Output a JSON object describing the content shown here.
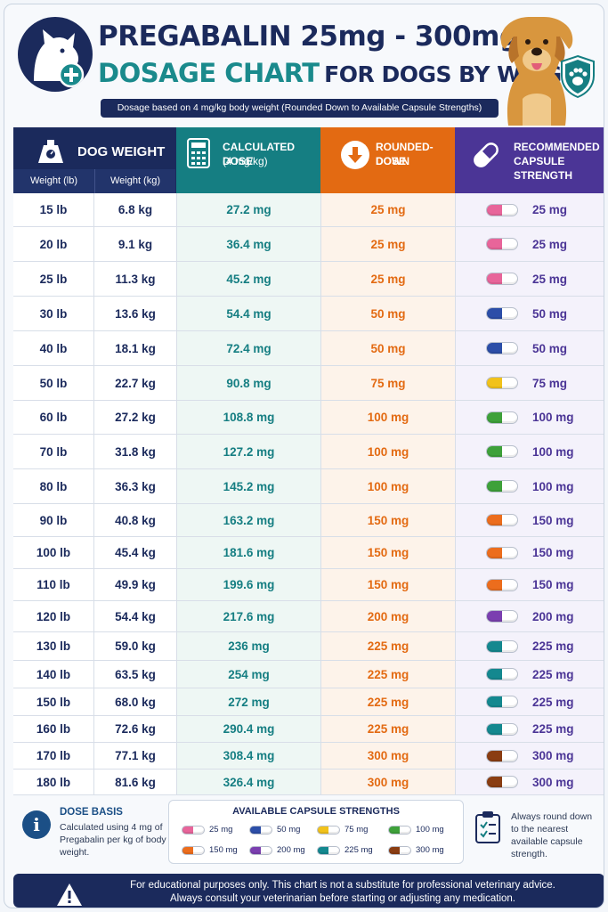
{
  "header": {
    "title_line1": "PREGABALIN 25mg - 300mg",
    "title_line2a": "DOSAGE CHART",
    "title_line2b": "FOR DOGS BY WEIGHT",
    "subtitle": "Dosage based on 4 mg/kg body weight (Rounded Down to Available Capsule Strengths)",
    "logo_icon": "dog-head-plus-icon",
    "photo": "golden-retriever",
    "badge_icon": "paw-shield-icon"
  },
  "columns": {
    "weight": "DOG WEIGHT",
    "weight_lb": "Weight (lb)",
    "weight_kg": "Weight (kg)",
    "calc": "CALCULATED DOSE",
    "calc_sub": "(4 mg/kg)",
    "round": "ROUNDED-DOWN",
    "round_sub": "DOSE",
    "rec": "RECOMMENDED",
    "rec_sub": "CAPSULE STRENGTH"
  },
  "colors": {
    "25": "#e8659a",
    "50": "#2c4ea8",
    "75": "#f1c21b",
    "100": "#3ea13a",
    "150": "#ec6d1d",
    "200": "#7b3fb0",
    "225": "#14888f",
    "300": "#8a3d12"
  },
  "rows": [
    {
      "lb": "15 lb",
      "kg": "6.8 kg",
      "calc": "27.2 mg",
      "round": "25 mg",
      "cap": "25",
      "rec": "25 mg"
    },
    {
      "lb": "20 lb",
      "kg": "9.1 kg",
      "calc": "36.4 mg",
      "round": "25 mg",
      "cap": "25",
      "rec": "25 mg"
    },
    {
      "lb": "25 lb",
      "kg": "11.3 kg",
      "calc": "45.2 mg",
      "round": "25 mg",
      "cap": "25",
      "rec": "25 mg"
    },
    {
      "lb": "30 lb",
      "kg": "13.6 kg",
      "calc": "54.4 mg",
      "round": "50 mg",
      "cap": "50",
      "rec": "50 mg"
    },
    {
      "lb": "40 lb",
      "kg": "18.1 kg",
      "calc": "72.4 mg",
      "round": "50 mg",
      "cap": "50",
      "rec": "50 mg"
    },
    {
      "lb": "50 lb",
      "kg": "22.7 kg",
      "calc": "90.8 mg",
      "round": "75 mg",
      "cap": "75",
      "rec": "75 mg"
    },
    {
      "lb": "60 lb",
      "kg": "27.2 kg",
      "calc": "108.8 mg",
      "round": "100 mg",
      "cap": "100",
      "rec": "100 mg"
    },
    {
      "lb": "70 lb",
      "kg": "31.8 kg",
      "calc": "127.2 mg",
      "round": "100 mg",
      "cap": "100",
      "rec": "100 mg"
    },
    {
      "lb": "80 lb",
      "kg": "36.3 kg",
      "calc": "145.2 mg",
      "round": "100 mg",
      "cap": "100",
      "rec": "100 mg"
    },
    {
      "lb": "90 lb",
      "kg": "40.8 kg",
      "calc": "163.2 mg",
      "round": "150 mg",
      "cap": "150",
      "rec": "150 mg"
    },
    {
      "lb": "100 lb",
      "kg": "45.4 kg",
      "calc": "181.6 mg",
      "round": "150 mg",
      "cap": "150",
      "rec": "150 mg"
    },
    {
      "lb": "110 lb",
      "kg": "49.9 kg",
      "calc": "199.6 mg",
      "round": "150 mg",
      "cap": "150",
      "rec": "150 mg"
    },
    {
      "lb": "120 lb",
      "kg": "54.4 kg",
      "calc": "217.6 mg",
      "round": "200 mg",
      "cap": "200",
      "rec": "200 mg"
    },
    {
      "lb": "130 lb",
      "kg": "59.0 kg",
      "calc": "236 mg",
      "round": "225 mg",
      "cap": "225",
      "rec": "225 mg"
    },
    {
      "lb": "140 lb",
      "kg": "63.5 kg",
      "calc": "254 mg",
      "round": "225 mg",
      "cap": "225",
      "rec": "225 mg"
    },
    {
      "lb": "150 lb",
      "kg": "68.0 kg",
      "calc": "272 mg",
      "round": "225 mg",
      "cap": "225",
      "rec": "225 mg"
    },
    {
      "lb": "160 lb",
      "kg": "72.6 kg",
      "calc": "290.4 mg",
      "round": "225 mg",
      "cap": "225",
      "rec": "225 mg"
    },
    {
      "lb": "170 lb",
      "kg": "77.1 kg",
      "calc": "308.4 mg",
      "round": "300 mg",
      "cap": "300",
      "rec": "300 mg"
    },
    {
      "lb": "180 lb",
      "kg": "81.6 kg",
      "calc": "326.4 mg",
      "round": "300 mg",
      "cap": "300",
      "rec": "300 mg"
    }
  ],
  "basis": {
    "title": "DOSE BASIS",
    "text": "Calculated using 4 mg of Pregabalin per kg of body weight."
  },
  "available": {
    "title": "AVAILABLE CAPSULE STRENGTHS",
    "items": [
      {
        "cap": "25",
        "label": "25 mg"
      },
      {
        "cap": "50",
        "label": "50 mg"
      },
      {
        "cap": "75",
        "label": "75 mg"
      },
      {
        "cap": "100",
        "label": "100 mg"
      },
      {
        "cap": "150",
        "label": "150 mg"
      },
      {
        "cap": "200",
        "label": "200 mg"
      },
      {
        "cap": "225",
        "label": "225 mg"
      },
      {
        "cap": "300",
        "label": "300 mg"
      }
    ]
  },
  "rounding_note": "Always round down to the nearest available capsule strength.",
  "disclaimer": {
    "line1": "For educational purposes only. This chart is not a substitute for professional veterinary advice.",
    "line2": "Always consult your veterinarian before starting or adjusting any medication."
  }
}
